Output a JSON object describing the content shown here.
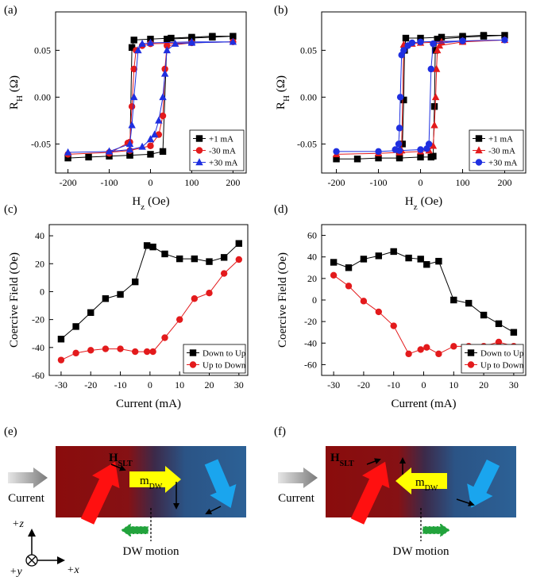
{
  "chart_data": [
    {
      "type": "line",
      "title": "(a)",
      "xlabel": {
        "main": "H",
        "sub": "z",
        "unit": "(Oe)"
      },
      "ylabel": {
        "main": "R",
        "sub": "H",
        "unit": "(Ω)"
      },
      "xlim": [
        -230,
        232
      ],
      "ylim": [
        -0.081,
        0.091
      ],
      "xticks": [
        -200,
        -100,
        0,
        100,
        200
      ],
      "yticks": [
        -0.05,
        {
          "value": 0,
          "label": "0.00"
        },
        0.05
      ],
      "legend": "lower right",
      "grid": false,
      "series": [
        {
          "name": "+1 mA",
          "color": "#000000",
          "marker": "square",
          "x": [
            -200,
            -150,
            -100,
            -50,
            0,
            30,
            40,
            100,
            150,
            200,
            150,
            100,
            50,
            0,
            -40,
            -45,
            -50
          ],
          "values": [
            -0.065,
            -0.064,
            -0.063,
            -0.062,
            -0.061,
            -0.058,
            0.062,
            0.063,
            0.064,
            0.065,
            0.065,
            0.064,
            0.063,
            0.062,
            0.061,
            0.053,
            -0.062
          ]
        },
        {
          "name": "-30 mA",
          "color": "#e31a1c",
          "marker": "circle",
          "x": [
            -200,
            -100,
            -50,
            0,
            20,
            30,
            35,
            40,
            100,
            200,
            100,
            0,
            -20,
            -35,
            -40,
            -45,
            -50,
            -55,
            -100
          ],
          "values": [
            -0.061,
            -0.059,
            -0.057,
            -0.052,
            -0.04,
            -0.02,
            0.03,
            0.055,
            0.058,
            0.059,
            0.058,
            0.057,
            0.055,
            0.05,
            0.03,
            -0.01,
            -0.048,
            -0.049,
            -0.06
          ]
        },
        {
          "name": "+30 mA",
          "color": "#1f2fe0",
          "marker": "triangle",
          "x": [
            -200,
            -100,
            -50,
            -20,
            0,
            10,
            20,
            30,
            35,
            40,
            60,
            100,
            200,
            100,
            0,
            -20,
            -30,
            -40,
            -45,
            -50,
            -100
          ],
          "values": [
            -0.059,
            -0.058,
            -0.056,
            -0.053,
            -0.045,
            -0.04,
            -0.025,
            0.0,
            0.025,
            0.05,
            0.057,
            0.058,
            0.059,
            0.059,
            0.058,
            0.057,
            0.05,
            0.0,
            -0.03,
            -0.05,
            -0.058
          ]
        }
      ]
    },
    {
      "type": "line",
      "title": "(b)",
      "xlabel": {
        "main": "H",
        "sub": "z",
        "unit": "(Oe)"
      },
      "ylabel": {
        "main": "R",
        "sub": "H",
        "unit": "(Ω)"
      },
      "xlim": [
        -235,
        250
      ],
      "ylim": [
        -0.081,
        0.091
      ],
      "xticks": [
        -200,
        -100,
        0,
        100,
        200
      ],
      "yticks": [
        -0.05,
        {
          "value": 0,
          "label": "0.00"
        },
        0.05
      ],
      "legend": "lower right",
      "grid": false,
      "series": [
        {
          "name": "+1 mA",
          "color": "#000000",
          "marker": "square",
          "x": [
            -200,
            -150,
            -100,
            -50,
            0,
            25,
            30,
            33,
            35,
            40,
            100,
            150,
            200,
            150,
            100,
            50,
            0,
            -35,
            -38,
            -40,
            -43,
            -50
          ],
          "values": [
            -0.066,
            -0.066,
            -0.065,
            -0.065,
            -0.064,
            -0.064,
            -0.063,
            -0.01,
            0.05,
            0.062,
            0.064,
            0.065,
            0.066,
            0.066,
            0.065,
            0.064,
            0.063,
            0.063,
            0.05,
            -0.003,
            -0.05,
            -0.063
          ]
        },
        {
          "name": "-30 mA",
          "color": "#e31a1c",
          "marker": "triangle",
          "x": [
            -200,
            -100,
            -50,
            0,
            20,
            30,
            33,
            36,
            38,
            40,
            45,
            100,
            200,
            100,
            50,
            0,
            -20,
            -40,
            -45
          ],
          "values": [
            -0.061,
            -0.06,
            -0.059,
            -0.058,
            -0.057,
            -0.052,
            -0.03,
            0.0,
            0.03,
            0.05,
            0.055,
            0.059,
            0.061,
            0.06,
            0.059,
            0.058,
            0.057,
            0.056,
            -0.057
          ]
        },
        {
          "name": "+30 mA",
          "color": "#1f2fe0",
          "marker": "circle",
          "x": [
            -200,
            -100,
            -50,
            0,
            15,
            20,
            25,
            30,
            100,
            200,
            100,
            0,
            -20,
            -30,
            -40,
            -45,
            -48,
            -50,
            -52,
            -60
          ],
          "values": [
            -0.058,
            -0.058,
            -0.057,
            -0.056,
            -0.055,
            -0.05,
            0.03,
            0.057,
            0.06,
            0.061,
            0.06,
            0.059,
            0.058,
            0.055,
            0.05,
            0.045,
            0.0,
            -0.033,
            -0.05,
            -0.056
          ]
        }
      ]
    },
    {
      "type": "line",
      "title": "(c)",
      "xlabel": {
        "main": "Current (mA)"
      },
      "ylabel": {
        "main": "Coercive Field (Oe)"
      },
      "xlim": [
        -34,
        33
      ],
      "ylim": [
        -60,
        48
      ],
      "xticks": [
        -30,
        -20,
        -10,
        0,
        10,
        20,
        30
      ],
      "yticks": [
        -60,
        -40,
        -20,
        0,
        20,
        40
      ],
      "legend": "lower right",
      "grid": false,
      "series": [
        {
          "name": "Down to Up",
          "color": "#000000",
          "marker": "square",
          "x": [
            -30,
            -25,
            -20,
            -15,
            -10,
            -5,
            -1,
            1,
            5,
            10,
            15,
            20,
            25,
            30
          ],
          "values": [
            -34,
            -25,
            -15,
            -5,
            -2,
            7,
            33,
            32,
            27,
            23.5,
            23.5,
            21.5,
            24.5,
            34.5
          ]
        },
        {
          "name": "Up to Down",
          "color": "#e31a1c",
          "marker": "circle",
          "x": [
            -30,
            -25,
            -20,
            -15,
            -10,
            -5,
            -1,
            1,
            5,
            10,
            15,
            20,
            25,
            30
          ],
          "values": [
            -49,
            -44,
            -42,
            -41,
            -41,
            -43,
            -43,
            -43,
            -33,
            -20,
            -5,
            -1,
            13,
            23
          ]
        }
      ]
    },
    {
      "type": "line",
      "title": "(d)",
      "xlabel": {
        "main": "Current (mA)"
      },
      "ylabel": {
        "main": "Coercive Field (Oe)"
      },
      "xlim": [
        -34,
        34
      ],
      "ylim": [
        -70,
        70
      ],
      "xticks": [
        -30,
        -20,
        -10,
        0,
        10,
        20,
        30
      ],
      "yticks": [
        -60,
        -40,
        -20,
        0,
        20,
        40,
        60
      ],
      "legend": "lower right",
      "grid": false,
      "series": [
        {
          "name": "Down to Up",
          "color": "#000000",
          "marker": "square",
          "x": [
            -30,
            -25,
            -20,
            -15,
            -10,
            -5,
            -1,
            1,
            5,
            10,
            15,
            20,
            25,
            30
          ],
          "values": [
            35,
            30,
            38,
            41,
            45,
            39,
            38,
            33,
            36,
            0,
            -3,
            -14,
            -22,
            -30
          ]
        },
        {
          "name": "Up to Down",
          "color": "#e31a1c",
          "marker": "circle",
          "x": [
            -30,
            -25,
            -20,
            -15,
            -10,
            -5,
            -1,
            1,
            5,
            10,
            15,
            20,
            25,
            30
          ],
          "values": [
            23,
            13,
            -1,
            -11,
            -24,
            -50,
            -46,
            -44,
            -50,
            -43,
            -43,
            -43,
            -39,
            -43
          ]
        }
      ]
    }
  ],
  "diagrams": [
    {
      "title": "(e)",
      "current": "Current",
      "field": {
        "main": "H",
        "sub": "SLT"
      },
      "moment": {
        "main": "m",
        "sub": "DW"
      },
      "motion": "DW motion"
    },
    {
      "title": "(f)",
      "current": "Current",
      "field": {
        "main": "H",
        "sub": "SLT"
      },
      "moment": {
        "main": "m",
        "sub": "DW"
      },
      "motion": "DW motion"
    }
  ],
  "axes_key": {
    "z": "+z",
    "y": "+y",
    "x": "+x"
  }
}
